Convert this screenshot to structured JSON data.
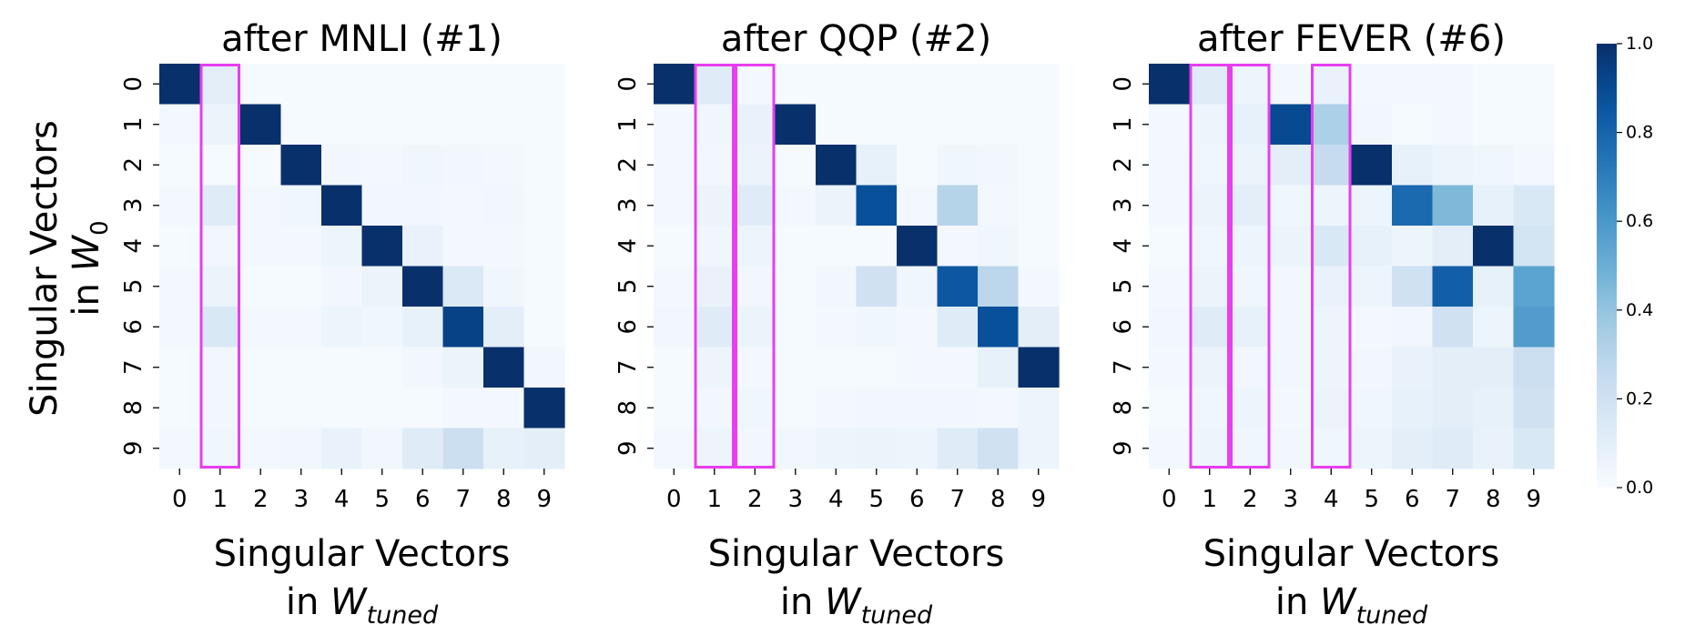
{
  "chart_data": [
    {
      "type": "heatmap",
      "title": "after MNLI (#1)",
      "x_categories": [
        "0",
        "1",
        "2",
        "3",
        "4",
        "5",
        "6",
        "7",
        "8",
        "9"
      ],
      "y_categories": [
        "0",
        "1",
        "2",
        "3",
        "4",
        "5",
        "6",
        "7",
        "8",
        "9"
      ],
      "highlighted_columns": [
        1
      ],
      "values": [
        [
          1.0,
          0.1,
          0.01,
          0.01,
          0.01,
          0.01,
          0.01,
          0.01,
          0.01,
          0.01
        ],
        [
          0.02,
          0.06,
          1.0,
          0.01,
          0.01,
          0.01,
          0.01,
          0.01,
          0.01,
          0.01
        ],
        [
          0.01,
          0.01,
          0.01,
          1.0,
          0.03,
          0.02,
          0.04,
          0.03,
          0.02,
          0.01
        ],
        [
          0.02,
          0.12,
          0.02,
          0.04,
          1.0,
          0.03,
          0.03,
          0.02,
          0.03,
          0.01
        ],
        [
          0.01,
          0.03,
          0.02,
          0.02,
          0.05,
          1.0,
          0.07,
          0.02,
          0.02,
          0.01
        ],
        [
          0.02,
          0.06,
          0.01,
          0.01,
          0.03,
          0.06,
          1.0,
          0.14,
          0.04,
          0.01
        ],
        [
          0.02,
          0.15,
          0.02,
          0.02,
          0.05,
          0.04,
          0.08,
          0.93,
          0.1,
          0.01
        ],
        [
          0.01,
          0.03,
          0.01,
          0.01,
          0.01,
          0.01,
          0.03,
          0.06,
          1.0,
          0.03
        ],
        [
          0.01,
          0.03,
          0.01,
          0.01,
          0.01,
          0.01,
          0.01,
          0.02,
          0.02,
          1.0
        ],
        [
          0.02,
          0.04,
          0.02,
          0.03,
          0.07,
          0.03,
          0.12,
          0.22,
          0.08,
          0.1
        ]
      ]
    },
    {
      "type": "heatmap",
      "title": "after QQP (#2)",
      "x_categories": [
        "0",
        "1",
        "2",
        "3",
        "4",
        "5",
        "6",
        "7",
        "8",
        "9"
      ],
      "y_categories": [
        "0",
        "1",
        "2",
        "3",
        "4",
        "5",
        "6",
        "7",
        "8",
        "9"
      ],
      "highlighted_columns": [
        1,
        2
      ],
      "values": [
        [
          1.0,
          0.12,
          0.02,
          0.01,
          0.01,
          0.01,
          0.01,
          0.01,
          0.01,
          0.01
        ],
        [
          0.02,
          0.04,
          0.07,
          1.0,
          0.01,
          0.01,
          0.01,
          0.01,
          0.01,
          0.01
        ],
        [
          0.02,
          0.03,
          0.06,
          0.01,
          1.0,
          0.08,
          0.01,
          0.04,
          0.03,
          0.01
        ],
        [
          0.02,
          0.06,
          0.12,
          0.02,
          0.06,
          0.88,
          0.02,
          0.3,
          0.02,
          0.01
        ],
        [
          0.01,
          0.04,
          0.05,
          0.01,
          0.01,
          0.01,
          1.0,
          0.02,
          0.04,
          0.01
        ],
        [
          0.02,
          0.07,
          0.03,
          0.01,
          0.03,
          0.2,
          0.04,
          0.85,
          0.28,
          0.02
        ],
        [
          0.03,
          0.12,
          0.06,
          0.01,
          0.02,
          0.04,
          0.02,
          0.12,
          0.88,
          0.1
        ],
        [
          0.01,
          0.05,
          0.02,
          0.01,
          0.01,
          0.01,
          0.02,
          0.02,
          0.08,
          1.0
        ],
        [
          0.01,
          0.03,
          0.04,
          0.01,
          0.02,
          0.03,
          0.03,
          0.03,
          0.02,
          0.05
        ],
        [
          0.02,
          0.05,
          0.03,
          0.03,
          0.05,
          0.06,
          0.05,
          0.12,
          0.2,
          0.05
        ]
      ]
    },
    {
      "type": "heatmap",
      "title": "after FEVER (#6)",
      "x_categories": [
        "0",
        "1",
        "2",
        "3",
        "4",
        "5",
        "6",
        "7",
        "8",
        "9"
      ],
      "y_categories": [
        "0",
        "1",
        "2",
        "3",
        "4",
        "5",
        "6",
        "7",
        "8",
        "9"
      ],
      "highlighted_columns": [
        1,
        2,
        4
      ],
      "values": [
        [
          1.0,
          0.12,
          0.05,
          0.02,
          0.07,
          0.02,
          0.02,
          0.02,
          0.01,
          0.01
        ],
        [
          0.02,
          0.05,
          0.08,
          0.9,
          0.33,
          0.03,
          0.01,
          0.02,
          0.01,
          0.01
        ],
        [
          0.02,
          0.04,
          0.06,
          0.1,
          0.25,
          1.0,
          0.08,
          0.05,
          0.04,
          0.02
        ],
        [
          0.02,
          0.06,
          0.1,
          0.04,
          0.05,
          0.05,
          0.78,
          0.45,
          0.08,
          0.15
        ],
        [
          0.01,
          0.04,
          0.05,
          0.06,
          0.15,
          0.08,
          0.05,
          0.1,
          1.0,
          0.18
        ],
        [
          0.02,
          0.06,
          0.04,
          0.03,
          0.07,
          0.05,
          0.2,
          0.82,
          0.08,
          0.55
        ],
        [
          0.03,
          0.12,
          0.08,
          0.03,
          0.05,
          0.02,
          0.03,
          0.2,
          0.05,
          0.58
        ],
        [
          0.02,
          0.06,
          0.03,
          0.03,
          0.05,
          0.03,
          0.07,
          0.1,
          0.1,
          0.22
        ],
        [
          0.01,
          0.04,
          0.05,
          0.02,
          0.06,
          0.04,
          0.08,
          0.1,
          0.08,
          0.2
        ],
        [
          0.02,
          0.05,
          0.04,
          0.03,
          0.04,
          0.05,
          0.1,
          0.12,
          0.07,
          0.15
        ]
      ]
    }
  ],
  "shared": {
    "ylabel_line1": "Singular Vectors",
    "ylabel_line2_prefix": "in ",
    "ylabel_line2_italic": "W",
    "ylabel_line2_sub": "0",
    "xlabel_line1": "Singular Vectors",
    "xlabel_line2_prefix": "in ",
    "xlabel_line2_italic": "W",
    "xlabel_line2_sub": "tuned"
  },
  "colorbar": {
    "range": [
      0.0,
      1.0
    ],
    "ticks": [
      "0.0",
      "0.2",
      "0.4",
      "0.6",
      "0.8",
      "1.0"
    ],
    "colormap": "Blues",
    "color_low": "#f7fbff",
    "color_high": "#08306b"
  },
  "highlight_color": "#e83ef0"
}
